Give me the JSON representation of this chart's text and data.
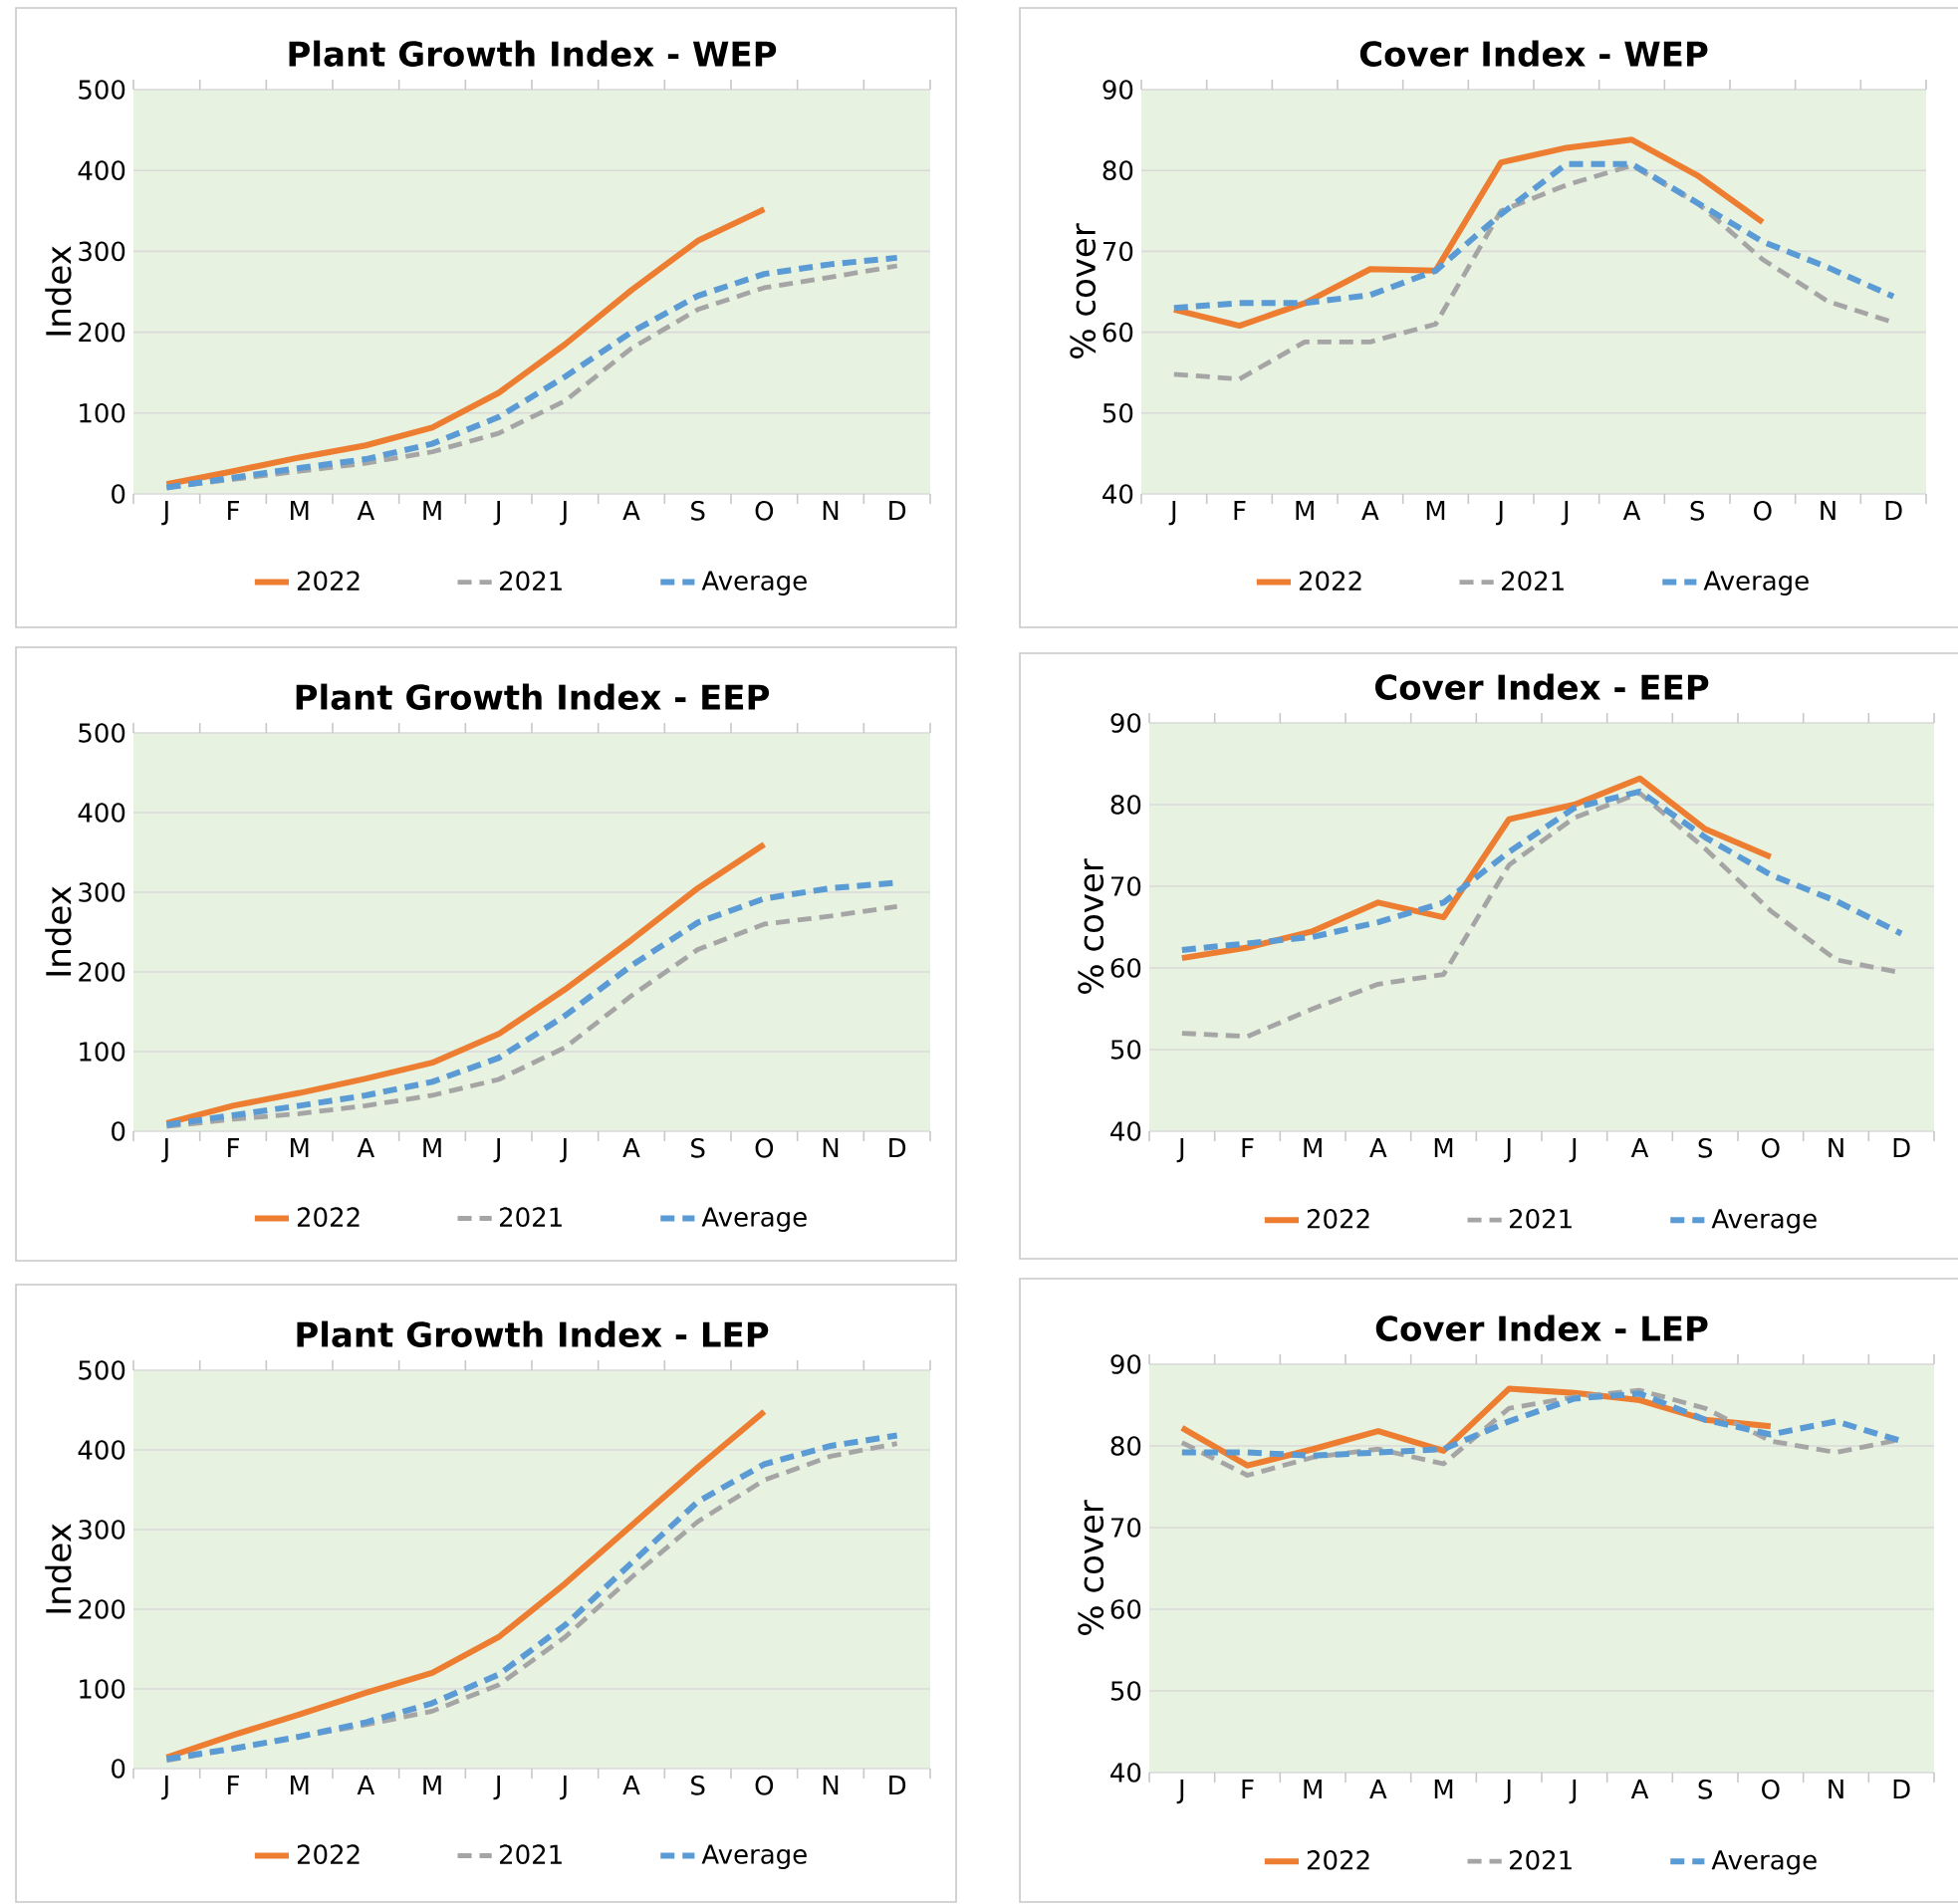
{
  "chart_data": [
    {
      "type": "line",
      "title": "Plant Growth Index - WEP",
      "ylabel": "Index",
      "categories": [
        "J",
        "F",
        "M",
        "A",
        "M",
        "J",
        "J",
        "A",
        "S",
        "O",
        "N",
        "D"
      ],
      "ylim": [
        0,
        500
      ],
      "yticks": [
        0,
        100,
        200,
        300,
        400,
        500
      ],
      "grid": "y",
      "legend": "bottom",
      "series": [
        {
          "name": "2022",
          "color": "#ed7d31",
          "line_style": "solid",
          "values": [
            12,
            28,
            45,
            60,
            82,
            125,
            185,
            252,
            313,
            352,
            null,
            null
          ]
        },
        {
          "name": "2021",
          "color": "#a5a5a5",
          "line_style": "dashed",
          "values": [
            8,
            18,
            28,
            38,
            52,
            75,
            115,
            180,
            228,
            255,
            268,
            282
          ]
        },
        {
          "name": "Average",
          "color": "#5b9bd5",
          "line_style": "dashed",
          "values": [
            8,
            20,
            32,
            43,
            62,
            95,
            145,
            200,
            245,
            272,
            284,
            292
          ]
        }
      ]
    },
    {
      "type": "line",
      "title": "Cover Index - WEP",
      "ylabel": "% cover",
      "categories": [
        "J",
        "F",
        "M",
        "A",
        "M",
        "J",
        "J",
        "A",
        "S",
        "O",
        "N",
        "D"
      ],
      "ylim": [
        40,
        90
      ],
      "yticks": [
        40,
        50,
        60,
        70,
        80,
        90
      ],
      "grid": "y",
      "legend": "bottom",
      "series": [
        {
          "name": "2022",
          "color": "#ed7d31",
          "line_style": "solid",
          "values": [
            62.8,
            60.8,
            63.6,
            67.8,
            67.6,
            81,
            82.8,
            83.8,
            79.4,
            73.6,
            null,
            null
          ]
        },
        {
          "name": "2021",
          "color": "#a5a5a5",
          "line_style": "dashed",
          "values": [
            54.8,
            54.2,
            58.8,
            58.8,
            61,
            75,
            78.2,
            80.6,
            76,
            69,
            63.8,
            61.2
          ]
        },
        {
          "name": "Average",
          "color": "#5b9bd5",
          "line_style": "dashed",
          "values": [
            63,
            63.6,
            63.6,
            64.6,
            67.6,
            74.6,
            80.8,
            80.8,
            76,
            71.2,
            68,
            64.4
          ]
        }
      ]
    },
    {
      "type": "line",
      "title": "Plant Growth Index - EEP",
      "ylabel": "Index",
      "categories": [
        "J",
        "F",
        "M",
        "A",
        "M",
        "J",
        "J",
        "A",
        "S",
        "O",
        "N",
        "D"
      ],
      "ylim": [
        0,
        500
      ],
      "yticks": [
        0,
        100,
        200,
        300,
        400,
        500
      ],
      "grid": "y",
      "legend": "bottom",
      "series": [
        {
          "name": "2022",
          "color": "#ed7d31",
          "line_style": "solid",
          "values": [
            10,
            32,
            48,
            66,
            86,
            122,
            178,
            240,
            305,
            360,
            null,
            null
          ]
        },
        {
          "name": "2021",
          "color": "#a5a5a5",
          "line_style": "dashed",
          "values": [
            6,
            15,
            22,
            32,
            45,
            65,
            105,
            170,
            228,
            260,
            270,
            282
          ]
        },
        {
          "name": "Average",
          "color": "#5b9bd5",
          "line_style": "dashed",
          "values": [
            8,
            20,
            32,
            45,
            62,
            92,
            145,
            208,
            262,
            292,
            305,
            312
          ]
        }
      ]
    },
    {
      "type": "line",
      "title": "Cover Index - EEP",
      "ylabel": "% cover",
      "categories": [
        "J",
        "F",
        "M",
        "A",
        "M",
        "J",
        "J",
        "A",
        "S",
        "O",
        "N",
        "D"
      ],
      "ylim": [
        40,
        90
      ],
      "yticks": [
        40,
        50,
        60,
        70,
        80,
        90
      ],
      "grid": "y",
      "legend": "bottom",
      "series": [
        {
          "name": "2022",
          "color": "#ed7d31",
          "line_style": "solid",
          "values": [
            61.2,
            62.5,
            64.5,
            68,
            66.2,
            78.2,
            80,
            83.2,
            77,
            73.6,
            null,
            null
          ]
        },
        {
          "name": "2021",
          "color": "#a5a5a5",
          "line_style": "dashed",
          "values": [
            52,
            51.6,
            55,
            58,
            59.2,
            72.6,
            78.4,
            81.4,
            74.6,
            67,
            61,
            59.4
          ]
        },
        {
          "name": "Average",
          "color": "#5b9bd5",
          "line_style": "dashed",
          "values": [
            62.2,
            63,
            63.8,
            65.6,
            68,
            74.2,
            79.6,
            81.6,
            76,
            71.4,
            68.2,
            64.2
          ]
        }
      ]
    },
    {
      "type": "line",
      "title": "Plant Growth Index - LEP",
      "ylabel": "Index",
      "categories": [
        "J",
        "F",
        "M",
        "A",
        "M",
        "J",
        "J",
        "A",
        "S",
        "O",
        "N",
        "D"
      ],
      "ylim": [
        0,
        500
      ],
      "yticks": [
        0,
        100,
        200,
        300,
        400,
        500
      ],
      "grid": "y",
      "legend": "bottom",
      "series": [
        {
          "name": "2022",
          "color": "#ed7d31",
          "line_style": "solid",
          "values": [
            14,
            42,
            68,
            95,
            120,
            165,
            232,
            305,
            378,
            448,
            null,
            null
          ]
        },
        {
          "name": "2021",
          "color": "#a5a5a5",
          "line_style": "dashed",
          "values": [
            10,
            25,
            40,
            55,
            72,
            105,
            165,
            240,
            310,
            362,
            392,
            408
          ]
        },
        {
          "name": "Average",
          "color": "#5b9bd5",
          "line_style": "dashed",
          "values": [
            12,
            25,
            40,
            58,
            82,
            118,
            180,
            258,
            335,
            382,
            405,
            418
          ]
        }
      ]
    },
    {
      "type": "line",
      "title": "Cover Index - LEP",
      "ylabel": "% cover",
      "categories": [
        "J",
        "F",
        "M",
        "A",
        "M",
        "J",
        "J",
        "A",
        "S",
        "O",
        "N",
        "D"
      ],
      "ylim": [
        40,
        90
      ],
      "yticks": [
        40,
        50,
        60,
        70,
        80,
        90
      ],
      "grid": "y",
      "legend": "bottom",
      "series": [
        {
          "name": "2022",
          "color": "#ed7d31",
          "line_style": "solid",
          "values": [
            82.2,
            77.6,
            79.6,
            81.8,
            79.4,
            87,
            86.5,
            85.6,
            83.2,
            82.4,
            null,
            null
          ]
        },
        {
          "name": "2021",
          "color": "#a5a5a5",
          "line_style": "dashed",
          "values": [
            80.4,
            76.4,
            78.6,
            79.6,
            77.8,
            84.6,
            86,
            86.8,
            84.6,
            80.6,
            79.2,
            80.8
          ]
        },
        {
          "name": "Average",
          "color": "#5b9bd5",
          "line_style": "dashed",
          "values": [
            79.2,
            79.2,
            78.8,
            79.2,
            79.6,
            83,
            85.8,
            86.4,
            83.2,
            81.4,
            83,
            80.6
          ]
        }
      ]
    }
  ]
}
